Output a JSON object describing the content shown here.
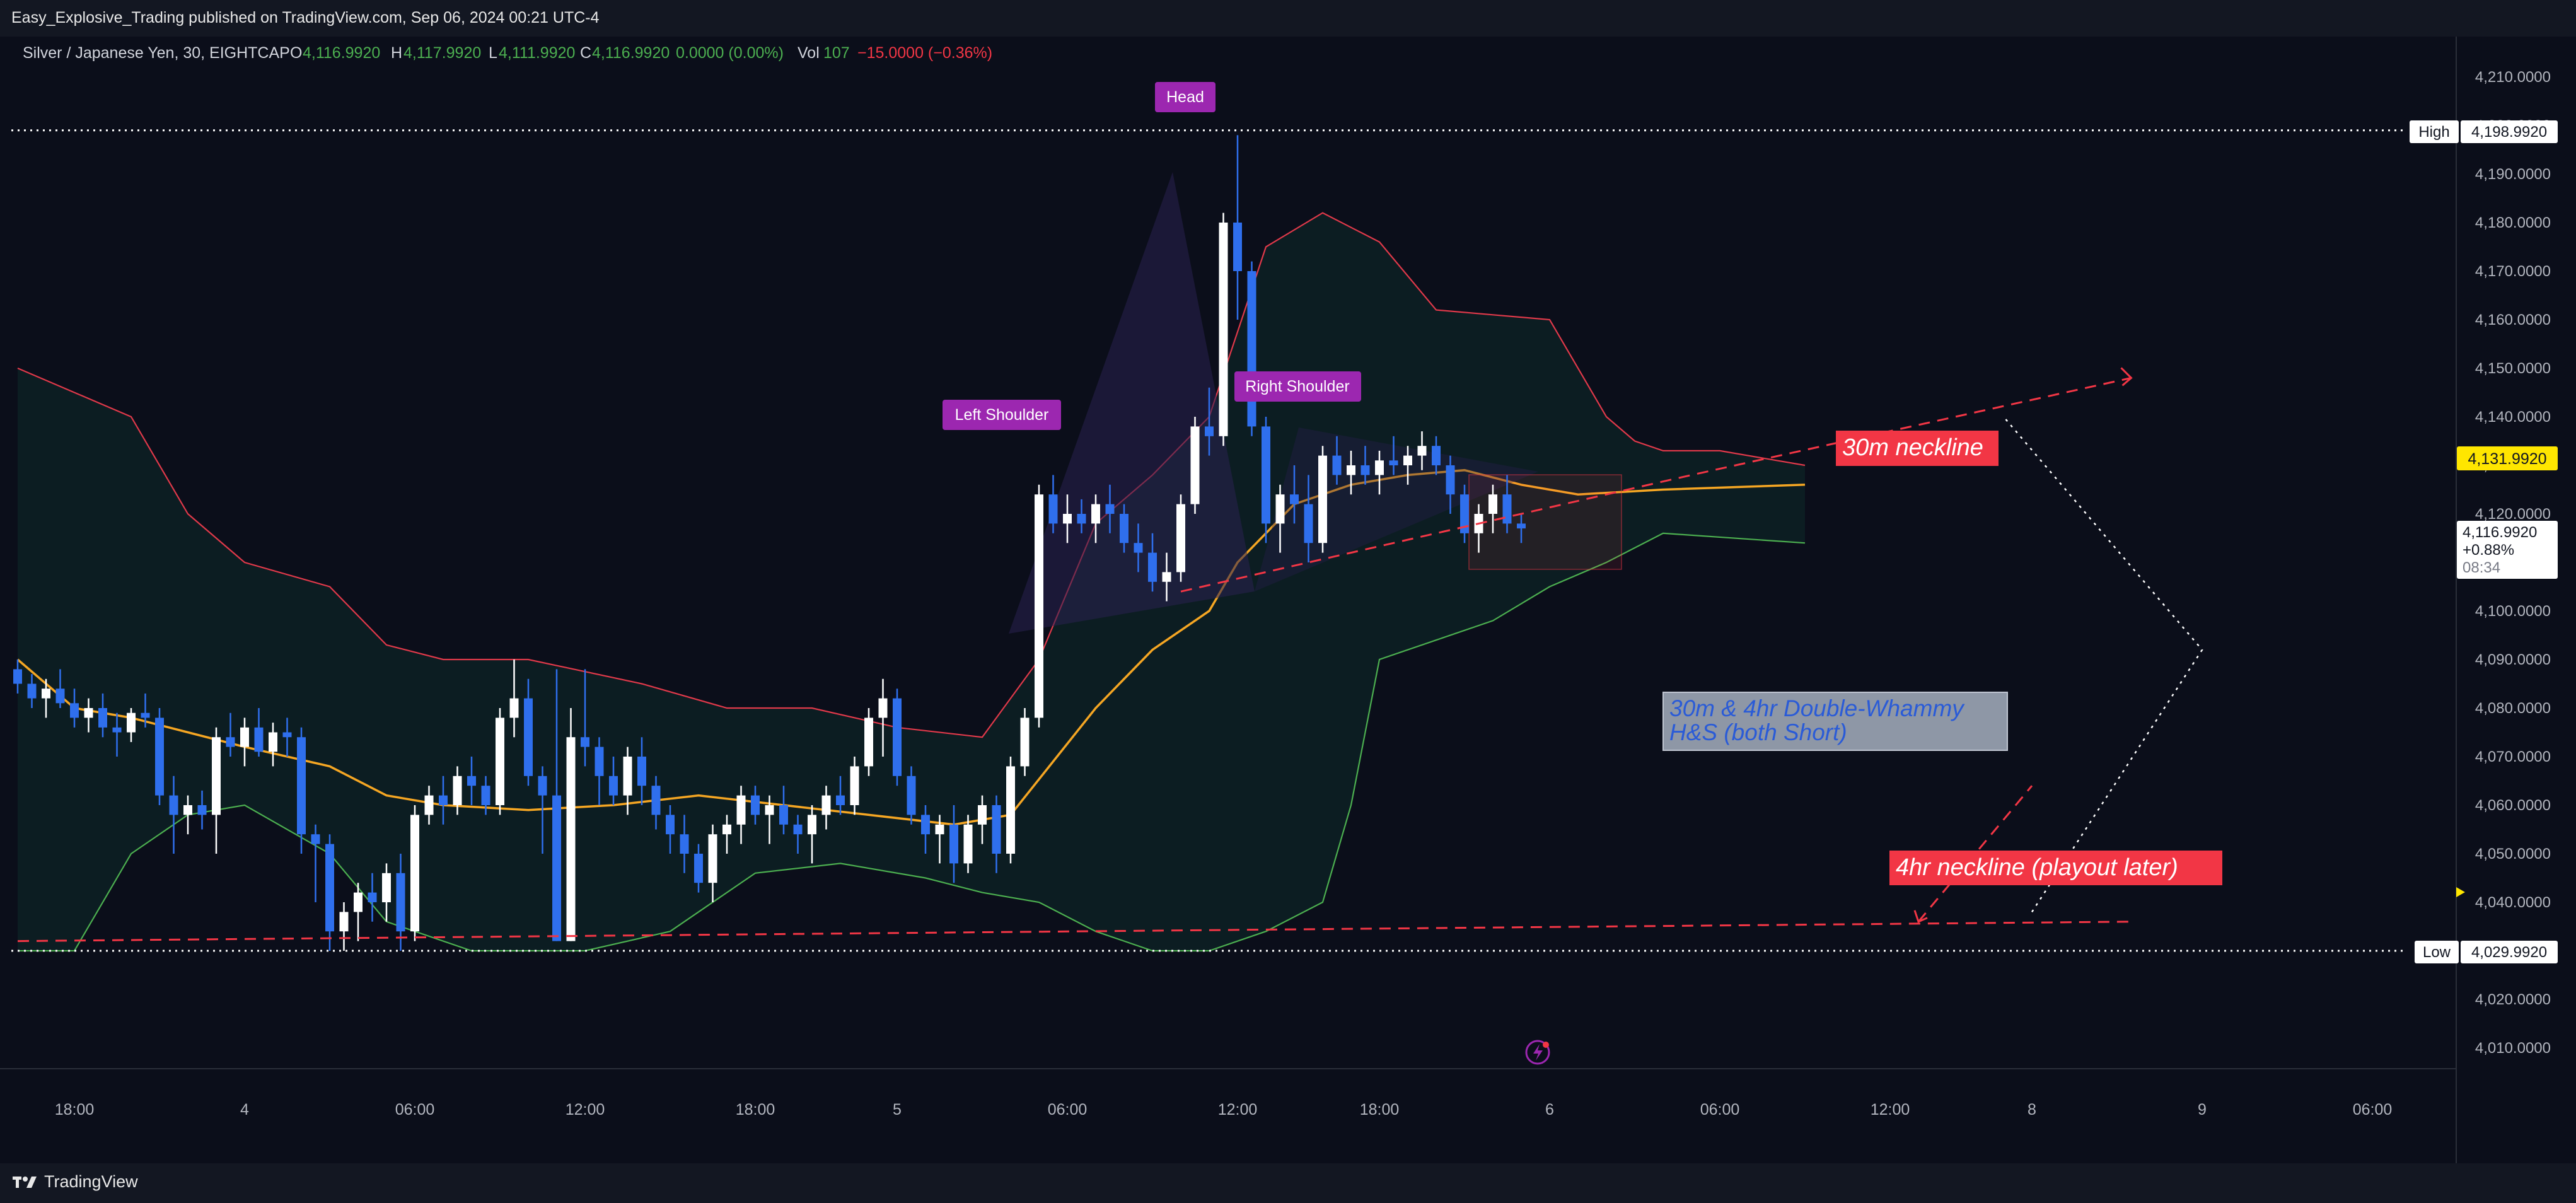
{
  "header": {
    "published": "Easy_Explosive_Trading published on TradingView.com, Sep 06, 2024 00:21 UTC-4"
  },
  "legend": {
    "symbol": "Silver / Japanese Yen, 30, EIGHTCAP",
    "o_label": "O",
    "o_value": "4,116.9920",
    "h_label": "H",
    "h_value": "4,117.9920",
    "l_label": "L",
    "l_value": "4,111.9920",
    "c_label": "C",
    "c_value": "4,116.9920",
    "change": "0.0000 (0.00%)",
    "vol_label": "Vol",
    "vol_value": "107",
    "vol_change": "−15.0000 (−0.36%)"
  },
  "annotations": {
    "head": "Head",
    "left_shoulder": "Left Shoulder",
    "right_shoulder": "Right Shoulder",
    "neckline_30m": "30m neckline",
    "double_whammy_line1": "30m & 4hr Double-Whammy",
    "double_whammy_line2": "H&S (both Short)",
    "neckline_4hr": "4hr neckline (playout later)"
  },
  "price_tags": {
    "high_label": "High",
    "high_value": "4,198.9920",
    "low_label": "Low",
    "low_value": "4,029.9920",
    "current_value": "4,116.9920",
    "current_change": "+0.88%",
    "current_countdown": "08:34",
    "ma_value": "4,131.9920"
  },
  "footer": {
    "brand": "TradingView"
  },
  "colors": {
    "bg": "#0b0e1a",
    "bull": "#ffffff",
    "bear": "#2f6fed",
    "upper_band": "#e0394a",
    "lower_band": "#4caf50",
    "basis": "#f5a623",
    "neckline": "#f23645",
    "label_purple": "#9c27b0",
    "ma_tag": "#ffe600"
  },
  "chart_data": {
    "type": "candlestick",
    "interval": "30",
    "ylim": [
      4005,
      4215
    ],
    "y_ticks": [
      4010,
      4020,
      4030,
      4040,
      4050,
      4060,
      4070,
      4080,
      4090,
      4100,
      4110,
      4120,
      4130,
      4140,
      4150,
      4160,
      4170,
      4180,
      4190,
      4200,
      4210
    ],
    "y_tick_labels": [
      "4,010.0000",
      "4,020.0000",
      "4,030.0000",
      "4,040.0000",
      "4,050.0000",
      "4,060.0000",
      "4,070.0000",
      "4,080.0000",
      "4,090.0000",
      "4,100.0000",
      "4,110.0000",
      "4,120.0000",
      "4,130.0000",
      "4,140.0000",
      "4,150.0000",
      "4,160.0000",
      "4,170.0000",
      "4,180.0000",
      "4,190.0000",
      "4,200.0000",
      "4,210.0000"
    ],
    "x_ticks": [
      {
        "label": "18:00",
        "bar": 4
      },
      {
        "label": "4",
        "bar": 16
      },
      {
        "label": "06:00",
        "bar": 28
      },
      {
        "label": "12:00",
        "bar": 40
      },
      {
        "label": "18:00",
        "bar": 52
      },
      {
        "label": "5",
        "bar": 62
      },
      {
        "label": "06:00",
        "bar": 74
      },
      {
        "label": "12:00",
        "bar": 86
      },
      {
        "label": "18:00",
        "bar": 96
      },
      {
        "label": "6",
        "bar": 108
      },
      {
        "label": "06:00",
        "bar": 120
      },
      {
        "label": "12:00",
        "bar": 132
      },
      {
        "label": "8",
        "bar": 142
      },
      {
        "label": "9",
        "bar": 154
      },
      {
        "label": "06:00",
        "bar": 166
      }
    ],
    "candles": [
      [
        4088,
        4090,
        4083,
        4085
      ],
      [
        4085,
        4087,
        4080,
        4082
      ],
      [
        4082,
        4086,
        4078,
        4084
      ],
      [
        4084,
        4088,
        4080,
        4081
      ],
      [
        4081,
        4084,
        4076,
        4078
      ],
      [
        4078,
        4082,
        4075,
        4080
      ],
      [
        4080,
        4083,
        4074,
        4076
      ],
      [
        4076,
        4079,
        4070,
        4075
      ],
      [
        4075,
        4080,
        4073,
        4079
      ],
      [
        4079,
        4083,
        4076,
        4078
      ],
      [
        4078,
        4080,
        4060,
        4062
      ],
      [
        4062,
        4066,
        4050,
        4058
      ],
      [
        4058,
        4062,
        4054,
        4060
      ],
      [
        4060,
        4063,
        4055,
        4058
      ],
      [
        4058,
        4076,
        4050,
        4074
      ],
      [
        4074,
        4079,
        4070,
        4072
      ],
      [
        4072,
        4078,
        4068,
        4076
      ],
      [
        4076,
        4080,
        4070,
        4071
      ],
      [
        4071,
        4077,
        4068,
        4075
      ],
      [
        4075,
        4078,
        4070,
        4074
      ],
      [
        4074,
        4076,
        4050,
        4054
      ],
      [
        4054,
        4056,
        4040,
        4052
      ],
      [
        4052,
        4054,
        4030,
        4034
      ],
      [
        4034,
        4040,
        4030,
        4038
      ],
      [
        4038,
        4044,
        4032,
        4042
      ],
      [
        4042,
        4046,
        4036,
        4040
      ],
      [
        4040,
        4048,
        4036,
        4046
      ],
      [
        4046,
        4050,
        4030,
        4034
      ],
      [
        4034,
        4060,
        4032,
        4058
      ],
      [
        4058,
        4064,
        4056,
        4062
      ],
      [
        4062,
        4066,
        4056,
        4060
      ],
      [
        4060,
        4068,
        4058,
        4066
      ],
      [
        4066,
        4070,
        4060,
        4064
      ],
      [
        4064,
        4066,
        4058,
        4060
      ],
      [
        4060,
        4080,
        4058,
        4078
      ],
      [
        4078,
        4090,
        4074,
        4082
      ],
      [
        4082,
        4086,
        4064,
        4066
      ],
      [
        4066,
        4068,
        4050,
        4062
      ],
      [
        4062,
        4088,
        4032,
        4032
      ],
      [
        4032,
        4080,
        4032,
        4074
      ],
      [
        4074,
        4088,
        4068,
        4072
      ],
      [
        4072,
        4074,
        4060,
        4066
      ],
      [
        4066,
        4070,
        4060,
        4062
      ],
      [
        4062,
        4072,
        4058,
        4070
      ],
      [
        4070,
        4074,
        4060,
        4064
      ],
      [
        4064,
        4066,
        4055,
        4058
      ],
      [
        4058,
        4060,
        4050,
        4054
      ],
      [
        4054,
        4058,
        4046,
        4050
      ],
      [
        4050,
        4052,
        4042,
        4044
      ],
      [
        4044,
        4056,
        4040,
        4054
      ],
      [
        4054,
        4058,
        4050,
        4056
      ],
      [
        4056,
        4064,
        4052,
        4062
      ],
      [
        4062,
        4064,
        4056,
        4058
      ],
      [
        4058,
        4062,
        4052,
        4060
      ],
      [
        4060,
        4064,
        4054,
        4056
      ],
      [
        4056,
        4058,
        4050,
        4054
      ],
      [
        4054,
        4060,
        4048,
        4058
      ],
      [
        4058,
        4064,
        4055,
        4062
      ],
      [
        4062,
        4066,
        4058,
        4060
      ],
      [
        4060,
        4070,
        4058,
        4068
      ],
      [
        4068,
        4080,
        4066,
        4078
      ],
      [
        4078,
        4086,
        4070,
        4082
      ],
      [
        4082,
        4084,
        4064,
        4066
      ],
      [
        4066,
        4068,
        4056,
        4058
      ],
      [
        4058,
        4060,
        4050,
        4054
      ],
      [
        4054,
        4058,
        4048,
        4056
      ],
      [
        4056,
        4060,
        4044,
        4048
      ],
      [
        4048,
        4058,
        4046,
        4056
      ],
      [
        4056,
        4062,
        4052,
        4060
      ],
      [
        4060,
        4062,
        4046,
        4050
      ],
      [
        4050,
        4070,
        4048,
        4068
      ],
      [
        4068,
        4080,
        4066,
        4078
      ],
      [
        4078,
        4126,
        4076,
        4124
      ],
      [
        4124,
        4128,
        4116,
        4118
      ],
      [
        4118,
        4124,
        4114,
        4120
      ],
      [
        4120,
        4123,
        4116,
        4118
      ],
      [
        4118,
        4124,
        4114,
        4122
      ],
      [
        4122,
        4126,
        4116,
        4120
      ],
      [
        4120,
        4122,
        4112,
        4114
      ],
      [
        4114,
        4118,
        4108,
        4112
      ],
      [
        4112,
        4116,
        4104,
        4106
      ],
      [
        4106,
        4112,
        4102,
        4108
      ],
      [
        4108,
        4124,
        4106,
        4122
      ],
      [
        4122,
        4140,
        4120,
        4138
      ],
      [
        4138,
        4146,
        4132,
        4136
      ],
      [
        4136,
        4182,
        4134,
        4180
      ],
      [
        4180,
        4198,
        4160,
        4170
      ],
      [
        4170,
        4172,
        4136,
        4138
      ],
      [
        4138,
        4140,
        4114,
        4118
      ],
      [
        4118,
        4126,
        4112,
        4124
      ],
      [
        4124,
        4130,
        4118,
        4122
      ],
      [
        4122,
        4128,
        4110,
        4114
      ],
      [
        4114,
        4134,
        4112,
        4132
      ],
      [
        4132,
        4136,
        4126,
        4128
      ],
      [
        4128,
        4133,
        4124,
        4130
      ],
      [
        4130,
        4134,
        4126,
        4128
      ],
      [
        4128,
        4133,
        4124,
        4131
      ],
      [
        4131,
        4136,
        4128,
        4130
      ],
      [
        4130,
        4134,
        4126,
        4132
      ],
      [
        4132,
        4137,
        4129,
        4134
      ],
      [
        4134,
        4136,
        4128,
        4130
      ],
      [
        4130,
        4132,
        4120,
        4124
      ],
      [
        4124,
        4126,
        4114,
        4116
      ],
      [
        4116,
        4122,
        4112,
        4120
      ],
      [
        4120,
        4126,
        4116,
        4124
      ],
      [
        4124,
        4128,
        4116,
        4118
      ],
      [
        4118,
        4120,
        4114,
        4117
      ]
    ],
    "bollinger_upper": [
      [
        0,
        4150
      ],
      [
        8,
        4140
      ],
      [
        12,
        4120
      ],
      [
        16,
        4110
      ],
      [
        22,
        4105
      ],
      [
        26,
        4093
      ],
      [
        30,
        4090
      ],
      [
        36,
        4090
      ],
      [
        44,
        4085
      ],
      [
        50,
        4080
      ],
      [
        56,
        4080
      ],
      [
        62,
        4076
      ],
      [
        68,
        4074
      ],
      [
        72,
        4090
      ],
      [
        76,
        4118
      ],
      [
        80,
        4128
      ],
      [
        84,
        4140
      ],
      [
        88,
        4175
      ],
      [
        92,
        4182
      ],
      [
        96,
        4176
      ],
      [
        100,
        4162
      ],
      [
        104,
        4161
      ],
      [
        108,
        4160
      ],
      [
        112,
        4140
      ],
      [
        114,
        4135
      ],
      [
        116,
        4133
      ],
      [
        120,
        4133
      ],
      [
        126,
        4130
      ]
    ],
    "bollinger_lower": [
      [
        0,
        4030
      ],
      [
        4,
        4030
      ],
      [
        8,
        4050
      ],
      [
        12,
        4058
      ],
      [
        16,
        4060
      ],
      [
        22,
        4050
      ],
      [
        26,
        4036
      ],
      [
        32,
        4030
      ],
      [
        40,
        4030
      ],
      [
        46,
        4034
      ],
      [
        52,
        4046
      ],
      [
        58,
        4048
      ],
      [
        64,
        4045
      ],
      [
        68,
        4042
      ],
      [
        72,
        4040
      ],
      [
        76,
        4034
      ],
      [
        80,
        4030
      ],
      [
        84,
        4030
      ],
      [
        88,
        4034
      ],
      [
        92,
        4040
      ],
      [
        94,
        4060
      ],
      [
        96,
        4090
      ],
      [
        100,
        4094
      ],
      [
        104,
        4098
      ],
      [
        108,
        4105
      ],
      [
        112,
        4110
      ],
      [
        116,
        4116
      ],
      [
        126,
        4114
      ]
    ],
    "basis": [
      [
        0,
        4090
      ],
      [
        4,
        4080
      ],
      [
        8,
        4078
      ],
      [
        12,
        4075
      ],
      [
        16,
        4072
      ],
      [
        22,
        4068
      ],
      [
        26,
        4062
      ],
      [
        30,
        4060
      ],
      [
        36,
        4059
      ],
      [
        42,
        4060
      ],
      [
        48,
        4062
      ],
      [
        54,
        4060
      ],
      [
        60,
        4058
      ],
      [
        66,
        4056
      ],
      [
        70,
        4058
      ],
      [
        76,
        4080
      ],
      [
        80,
        4092
      ],
      [
        84,
        4100
      ],
      [
        86,
        4110
      ],
      [
        90,
        4122
      ],
      [
        94,
        4126
      ],
      [
        98,
        4128
      ],
      [
        102,
        4129
      ],
      [
        106,
        4126
      ],
      [
        110,
        4124
      ],
      [
        116,
        4125
      ],
      [
        126,
        4126
      ]
    ],
    "neckline_30m": [
      [
        82,
        4104
      ],
      [
        118,
        4128
      ],
      [
        149,
        4148
      ]
    ],
    "neckline_4hr": [
      [
        0,
        4032
      ],
      [
        149,
        4036
      ]
    ],
    "projection_4hr": [
      [
        134,
        4036
      ],
      [
        142,
        4064
      ]
    ],
    "dotted_path": [
      [
        142,
        4038
      ],
      [
        154,
        4092
      ],
      [
        140,
        4140
      ]
    ],
    "high_line": 4198.992,
    "low_line": 4029.992,
    "current_price": 4116.992
  }
}
